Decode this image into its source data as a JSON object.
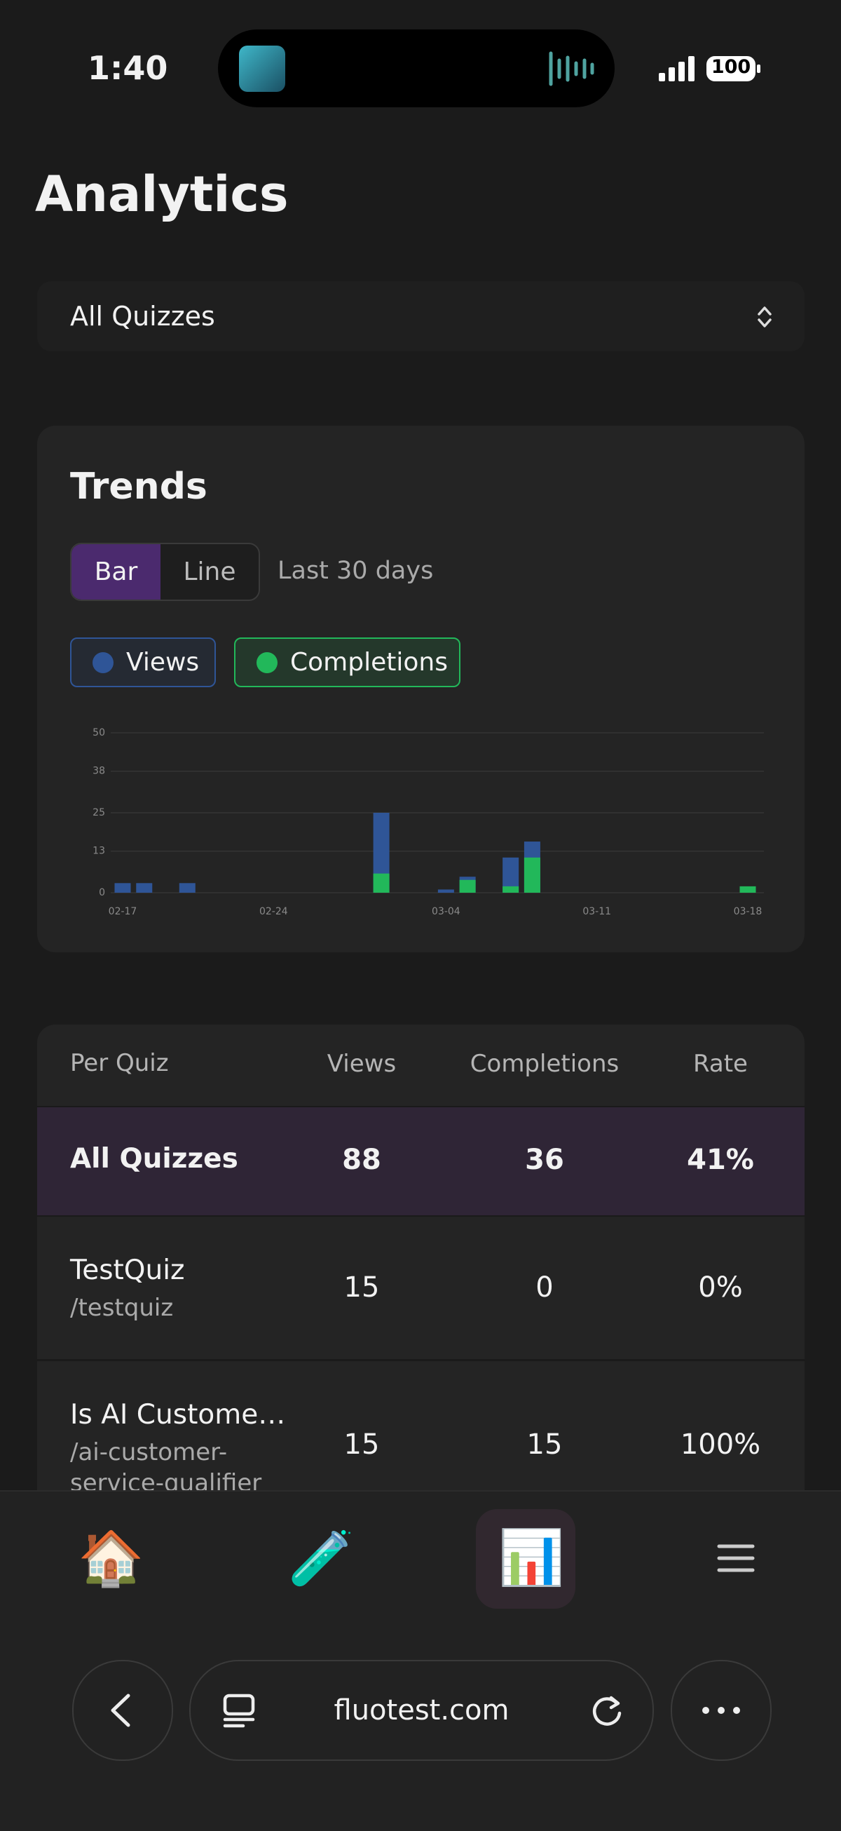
{
  "status_bar": {
    "time": "1:40",
    "battery": "100"
  },
  "header": {
    "title": "Analytics"
  },
  "filter": {
    "selected": "All Quizzes"
  },
  "trends": {
    "title": "Trends",
    "view_toggle": [
      "Bar",
      "Line"
    ],
    "range": "Last 30 days"
  },
  "chart_data": {
    "type": "bar",
    "categories": [
      "02-17",
      null,
      null,
      null,
      null,
      null,
      null,
      "02-24",
      null,
      null,
      null,
      null,
      null,
      null,
      null,
      "03-04",
      null,
      null,
      null,
      null,
      null,
      null,
      "03-11",
      null,
      null,
      null,
      null,
      null,
      null,
      "03-18"
    ],
    "series": [
      {
        "name": "Views",
        "color": "#2f5597",
        "values": [
          3,
          3,
          0,
          3,
          0,
          0,
          0,
          0,
          0,
          0,
          0,
          0,
          25,
          0,
          0,
          1,
          5,
          0,
          11,
          16,
          0,
          0,
          0,
          0,
          0,
          0,
          0,
          0,
          0,
          0
        ]
      },
      {
        "name": "Completions",
        "color": "#22b85a",
        "values": [
          0,
          0,
          0,
          0,
          0,
          0,
          0,
          0,
          0,
          0,
          0,
          0,
          6,
          0,
          0,
          0,
          4,
          0,
          2,
          11,
          0,
          0,
          0,
          0,
          0,
          0,
          0,
          0,
          0,
          2
        ]
      }
    ],
    "ylim": [
      0,
      50
    ],
    "yticks": [
      0,
      13,
      25,
      38,
      50
    ],
    "grid": true
  },
  "table": {
    "columns": [
      "Per Quiz",
      "Views",
      "Completions",
      "Rate"
    ],
    "rows": [
      {
        "name": "All Quizzes",
        "views": 88,
        "completions": 36,
        "rate": "41%"
      },
      {
        "name": "TestQuiz",
        "slug": "/testquiz",
        "views": 15,
        "completions": 0,
        "rate": "0%"
      },
      {
        "name": "Is AI Custome…",
        "slug": "/ai-customer-service-qualifier",
        "views": 15,
        "completions": 15,
        "rate": "100%"
      }
    ]
  },
  "browser": {
    "url": "fluotest.com"
  }
}
